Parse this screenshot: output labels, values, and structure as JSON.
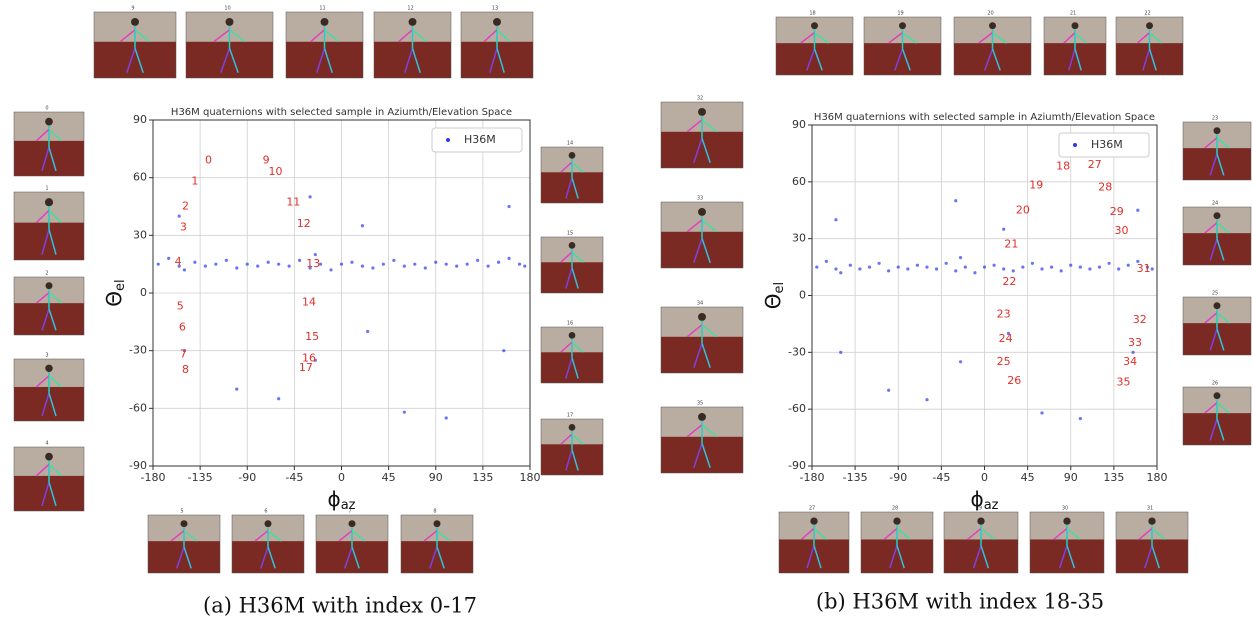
{
  "chart_data": [
    {
      "type": "scatter",
      "title": "H36M quaternions with selected sample in Aziumth/Elevation Space",
      "xlabel": {
        "symbol": "ϕ",
        "sub": "az"
      },
      "ylabel": {
        "symbol": "Θ",
        "sub": "el"
      },
      "xlim": [
        -180,
        180
      ],
      "ylim": [
        -90,
        90
      ],
      "xticks": [
        -180,
        -135,
        -90,
        -45,
        0,
        45,
        90,
        135,
        180
      ],
      "yticks": [
        -90,
        -60,
        -30,
        0,
        30,
        60,
        90
      ],
      "grid": true,
      "legend": "upper right",
      "series": [
        {
          "name": "H36M",
          "color": "#2b3bf0",
          "x": [
            -175,
            -165,
            -155,
            -150,
            -140,
            -130,
            -120,
            -110,
            -100,
            -90,
            -80,
            -70,
            -60,
            -50,
            -40,
            -30,
            -25,
            -20,
            -10,
            0,
            10,
            20,
            30,
            40,
            50,
            60,
            70,
            80,
            90,
            100,
            110,
            120,
            130,
            140,
            150,
            160,
            170,
            175,
            -155,
            -150,
            -30,
            -25,
            20,
            25,
            160,
            155,
            -60,
            -100,
            60,
            100
          ],
          "values": [
            15,
            18,
            14,
            12,
            16,
            14,
            15,
            17,
            13,
            15,
            14,
            16,
            15,
            14,
            17,
            13,
            20,
            15,
            12,
            15,
            16,
            14,
            13,
            15,
            17,
            14,
            15,
            13,
            16,
            15,
            14,
            15,
            17,
            14,
            16,
            18,
            15,
            14,
            40,
            -30,
            50,
            -35,
            35,
            -20,
            45,
            -30,
            -55,
            -50,
            -62,
            -65
          ]
        }
      ],
      "annotations": [
        {
          "label": "0",
          "x": -127,
          "y": 69
        },
        {
          "label": "1",
          "x": -140,
          "y": 58
        },
        {
          "label": "2",
          "x": -149,
          "y": 45
        },
        {
          "label": "3",
          "x": -151,
          "y": 34
        },
        {
          "label": "4",
          "x": -156,
          "y": 16
        },
        {
          "label": "5",
          "x": -154,
          "y": -7
        },
        {
          "label": "6",
          "x": -152,
          "y": -18
        },
        {
          "label": "7",
          "x": -151,
          "y": -32
        },
        {
          "label": "8",
          "x": -149,
          "y": -40
        },
        {
          "label": "9",
          "x": -72,
          "y": 69
        },
        {
          "label": "10",
          "x": -63,
          "y": 63
        },
        {
          "label": "11",
          "x": -46,
          "y": 47
        },
        {
          "label": "12",
          "x": -36,
          "y": 36
        },
        {
          "label": "13",
          "x": -27,
          "y": 15
        },
        {
          "label": "14",
          "x": -31,
          "y": -5
        },
        {
          "label": "15",
          "x": -28,
          "y": -23
        },
        {
          "label": "16",
          "x": -31,
          "y": -34
        },
        {
          "label": "17",
          "x": -34,
          "y": -39
        }
      ]
    },
    {
      "type": "scatter",
      "title": "H36M quaternions with selected sample in Aziumth/Elevation Space",
      "xlabel": {
        "symbol": "ϕ",
        "sub": "az"
      },
      "ylabel": {
        "symbol": "Θ",
        "sub": "el"
      },
      "xlim": [
        -180,
        180
      ],
      "ylim": [
        -90,
        90
      ],
      "xticks": [
        -180,
        -135,
        -90,
        -45,
        0,
        45,
        90,
        135,
        180
      ],
      "yticks": [
        -90,
        -60,
        -30,
        0,
        30,
        60,
        90
      ],
      "grid": true,
      "legend": "upper right",
      "series": [
        {
          "name": "H36M",
          "color": "#2b3bf0",
          "x": [
            -175,
            -165,
            -155,
            -150,
            -140,
            -130,
            -120,
            -110,
            -100,
            -90,
            -80,
            -70,
            -60,
            -50,
            -40,
            -30,
            -25,
            -20,
            -10,
            0,
            10,
            20,
            30,
            40,
            50,
            60,
            70,
            80,
            90,
            100,
            110,
            120,
            130,
            140,
            150,
            160,
            170,
            175,
            -155,
            -150,
            -30,
            -25,
            20,
            25,
            160,
            155,
            -60,
            -100,
            60,
            100
          ],
          "values": [
            15,
            18,
            14,
            12,
            16,
            14,
            15,
            17,
            13,
            15,
            14,
            16,
            15,
            14,
            17,
            13,
            20,
            15,
            12,
            15,
            16,
            14,
            13,
            15,
            17,
            14,
            15,
            13,
            16,
            15,
            14,
            15,
            17,
            14,
            16,
            18,
            15,
            14,
            40,
            -30,
            50,
            -35,
            35,
            -20,
            45,
            -30,
            -55,
            -50,
            -62,
            -65
          ]
        }
      ],
      "annotations": [
        {
          "label": "18",
          "x": 82,
          "y": 68
        },
        {
          "label": "19",
          "x": 54,
          "y": 58
        },
        {
          "label": "20",
          "x": 40,
          "y": 45
        },
        {
          "label": "21",
          "x": 28,
          "y": 27
        },
        {
          "label": "22",
          "x": 26,
          "y": 7
        },
        {
          "label": "23",
          "x": 20,
          "y": -10
        },
        {
          "label": "24",
          "x": 22,
          "y": -23
        },
        {
          "label": "25",
          "x": 20,
          "y": -35
        },
        {
          "label": "26",
          "x": 31,
          "y": -45
        },
        {
          "label": "27",
          "x": 115,
          "y": 69
        },
        {
          "label": "28",
          "x": 126,
          "y": 57
        },
        {
          "label": "29",
          "x": 138,
          "y": 44
        },
        {
          "label": "30",
          "x": 143,
          "y": 34
        },
        {
          "label": "31",
          "x": 166,
          "y": 14
        },
        {
          "label": "32",
          "x": 162,
          "y": -13
        },
        {
          "label": "33",
          "x": 157,
          "y": -25
        },
        {
          "label": "34",
          "x": 152,
          "y": -35
        },
        {
          "label": "35",
          "x": 145,
          "y": -46
        }
      ]
    }
  ],
  "thumbnails": [
    [
      "9",
      "10",
      "11",
      "12",
      "13",
      "0",
      "1",
      "2",
      "3",
      "4",
      "5",
      "6",
      "7",
      "8",
      "14",
      "15",
      "16",
      "17"
    ],
    [
      "18",
      "19",
      "20",
      "21",
      "22",
      "32",
      "33",
      "34",
      "35",
      "23",
      "24",
      "25",
      "26",
      "27",
      "28",
      "29",
      "30",
      "31"
    ]
  ],
  "captions": [
    "(a) H36M with index 0-17",
    "(b) H36M with index 18-35"
  ]
}
